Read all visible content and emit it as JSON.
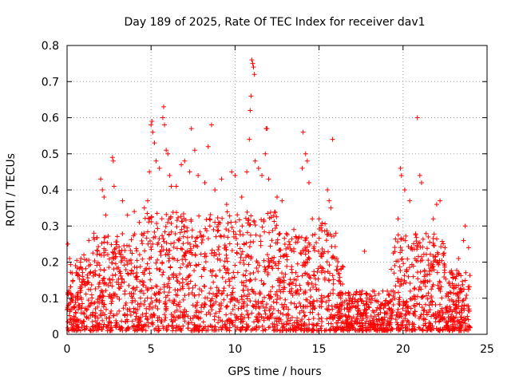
{
  "chart_data": {
    "type": "scatter",
    "title": "Day 189 of 2025, Rate Of TEC Index for receiver dav1",
    "xlabel": "GPS time / hours",
    "ylabel": "ROTI / TECUs",
    "xlim": [
      0,
      25
    ],
    "ylim": [
      0,
      0.8
    ],
    "x_ticks": [
      0,
      5,
      10,
      15,
      20,
      25
    ],
    "x_tick_labels": [
      "0",
      "5",
      "10",
      "15",
      "20",
      "25"
    ],
    "y_ticks": [
      0,
      0.1,
      0.2,
      0.3,
      0.4,
      0.5,
      0.6,
      0.7,
      0.8
    ],
    "y_tick_labels": [
      "0",
      "0.1",
      "0.2",
      "0.3",
      "0.4",
      "0.5",
      "0.6",
      "0.7",
      "0.8"
    ],
    "grid": true,
    "marker": "+",
    "color": "#ff0000",
    "data_x_range": [
      0,
      24
    ],
    "points": [
      [
        0.05,
        0.25
      ],
      [
        0.15,
        0.21
      ],
      [
        0.3,
        0.17
      ],
      [
        0.5,
        0.19
      ],
      [
        0.8,
        0.2
      ],
      [
        1.0,
        0.22
      ],
      [
        1.3,
        0.26
      ],
      [
        1.6,
        0.28
      ],
      [
        2.0,
        0.43
      ],
      [
        2.1,
        0.4
      ],
      [
        2.2,
        0.38
      ],
      [
        2.3,
        0.33
      ],
      [
        2.7,
        0.49
      ],
      [
        2.75,
        0.48
      ],
      [
        2.8,
        0.41
      ],
      [
        3.3,
        0.37
      ],
      [
        3.6,
        0.33
      ],
      [
        4.0,
        0.34
      ],
      [
        4.3,
        0.31
      ],
      [
        4.6,
        0.35
      ],
      [
        4.8,
        0.37
      ],
      [
        4.9,
        0.45
      ],
      [
        5.0,
        0.58
      ],
      [
        5.05,
        0.59
      ],
      [
        5.1,
        0.56
      ],
      [
        5.2,
        0.53
      ],
      [
        5.3,
        0.48
      ],
      [
        5.5,
        0.46
      ],
      [
        5.7,
        0.6
      ],
      [
        5.75,
        0.63
      ],
      [
        5.8,
        0.58
      ],
      [
        5.9,
        0.51
      ],
      [
        6.0,
        0.5
      ],
      [
        6.1,
        0.44
      ],
      [
        6.2,
        0.41
      ],
      [
        6.5,
        0.41
      ],
      [
        6.8,
        0.47
      ],
      [
        7.0,
        0.48
      ],
      [
        7.3,
        0.45
      ],
      [
        7.4,
        0.57
      ],
      [
        7.6,
        0.51
      ],
      [
        7.8,
        0.44
      ],
      [
        8.2,
        0.42
      ],
      [
        8.4,
        0.52
      ],
      [
        8.6,
        0.58
      ],
      [
        8.8,
        0.4
      ],
      [
        9.2,
        0.43
      ],
      [
        9.5,
        0.36
      ],
      [
        9.8,
        0.45
      ],
      [
        10.0,
        0.44
      ],
      [
        10.4,
        0.38
      ],
      [
        10.7,
        0.45
      ],
      [
        10.85,
        0.54
      ],
      [
        10.9,
        0.62
      ],
      [
        10.95,
        0.66
      ],
      [
        11.0,
        0.76
      ],
      [
        11.05,
        0.75
      ],
      [
        11.1,
        0.74
      ],
      [
        11.15,
        0.72
      ],
      [
        11.2,
        0.48
      ],
      [
        11.4,
        0.46
      ],
      [
        11.6,
        0.44
      ],
      [
        11.8,
        0.5
      ],
      [
        11.85,
        0.57
      ],
      [
        11.9,
        0.57
      ],
      [
        12.0,
        0.43
      ],
      [
        12.5,
        0.38
      ],
      [
        12.8,
        0.37
      ],
      [
        13.5,
        0.29
      ],
      [
        14.0,
        0.46
      ],
      [
        14.05,
        0.56
      ],
      [
        14.2,
        0.5
      ],
      [
        14.3,
        0.48
      ],
      [
        14.4,
        0.42
      ],
      [
        14.6,
        0.32
      ],
      [
        15.0,
        0.32
      ],
      [
        15.5,
        0.4
      ],
      [
        15.6,
        0.37
      ],
      [
        15.7,
        0.35
      ],
      [
        15.8,
        0.54
      ],
      [
        16.0,
        0.28
      ],
      [
        16.3,
        0.18
      ],
      [
        17.0,
        0.1
      ],
      [
        17.7,
        0.23
      ],
      [
        18.2,
        0.12
      ],
      [
        18.8,
        0.12
      ],
      [
        19.3,
        0.18
      ],
      [
        19.7,
        0.32
      ],
      [
        19.85,
        0.46
      ],
      [
        19.9,
        0.44
      ],
      [
        20.1,
        0.4
      ],
      [
        20.4,
        0.37
      ],
      [
        20.85,
        0.6
      ],
      [
        21.0,
        0.44
      ],
      [
        21.1,
        0.42
      ],
      [
        21.5,
        0.27
      ],
      [
        21.8,
        0.32
      ],
      [
        22.0,
        0.36
      ],
      [
        22.2,
        0.37
      ],
      [
        22.5,
        0.24
      ],
      [
        22.9,
        0.17
      ],
      [
        23.3,
        0.21
      ],
      [
        23.6,
        0.26
      ],
      [
        23.7,
        0.3
      ],
      [
        23.9,
        0.24
      ]
    ]
  }
}
